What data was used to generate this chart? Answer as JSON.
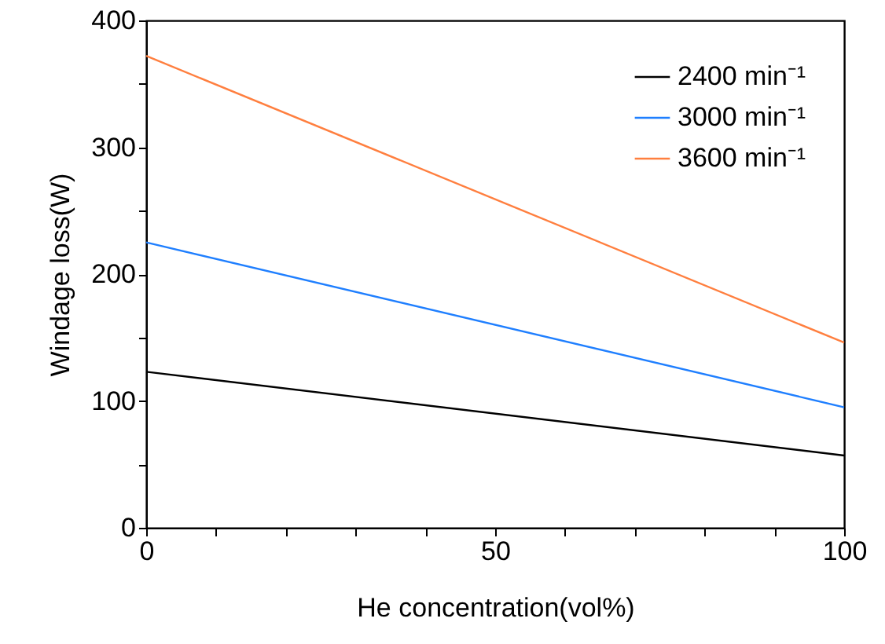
{
  "chart_data": {
    "type": "line",
    "xlabel": "He concentration(vol%)",
    "ylabel": "Windage loss(W)",
    "x": [
      0,
      100
    ],
    "series": [
      {
        "name": "2400 min⁻¹",
        "color": "#000000",
        "values": [
          123,
          57
        ]
      },
      {
        "name": "3000 min⁻¹",
        "color": "#1f7fff",
        "values": [
          225,
          95
        ]
      },
      {
        "name": "3600 min⁻¹",
        "color": "#ff7f3f",
        "values": [
          372,
          146
        ]
      }
    ],
    "xlim": [
      0,
      100
    ],
    "ylim": [
      0,
      400
    ],
    "xticks": [
      0,
      {
        "value": 10,
        "label": null
      },
      {
        "value": 20,
        "label": null
      },
      {
        "value": 30,
        "label": null
      },
      {
        "value": 40,
        "label": null
      },
      50,
      {
        "value": 60,
        "label": null
      },
      {
        "value": 70,
        "label": null
      },
      {
        "value": 80,
        "label": null
      },
      {
        "value": 90,
        "label": null
      },
      100
    ],
    "yticks": [
      0,
      {
        "value": 50,
        "label": null
      },
      100,
      {
        "value": 150,
        "label": null
      },
      200,
      {
        "value": 250,
        "label": null
      },
      300,
      {
        "value": 350,
        "label": null
      },
      400
    ],
    "legend": "top right",
    "grid": false,
    "marker": "none",
    "line_style": "solid"
  }
}
